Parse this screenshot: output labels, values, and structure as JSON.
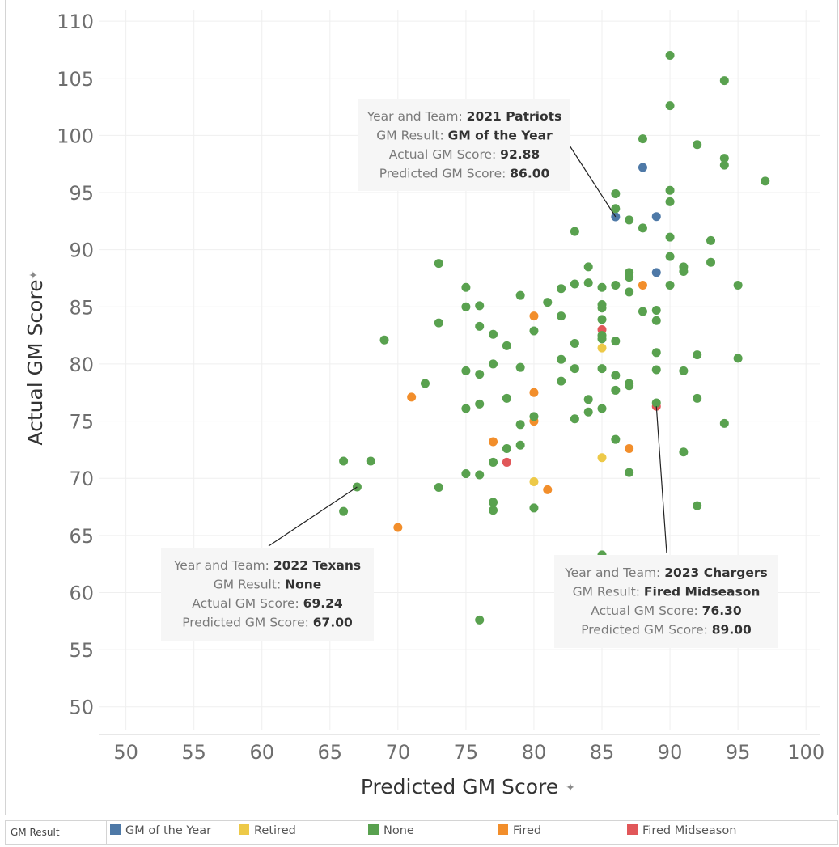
{
  "chart_data": {
    "type": "scatter",
    "xlabel": "Predicted GM Score",
    "ylabel": "Actual GM Score",
    "xlim": [
      48,
      101
    ],
    "ylim": [
      48,
      111
    ],
    "x_ticks": [
      50,
      55,
      60,
      65,
      70,
      75,
      80,
      85,
      90,
      95,
      100
    ],
    "y_ticks": [
      50,
      55,
      60,
      65,
      70,
      75,
      80,
      85,
      90,
      95,
      100,
      105,
      110
    ],
    "grid": true,
    "colors": {
      "GM of the Year": "#4e79a7",
      "Retired": "#edc948",
      "None": "#59a14f",
      "Fired": "#f28e2b",
      "Fired Midseason": "#e15759"
    },
    "points": [
      {
        "x": 86,
        "y": 92.88,
        "result": "GM of the Year"
      },
      {
        "x": 88,
        "y": 97.2,
        "result": "GM of the Year"
      },
      {
        "x": 89,
        "y": 92.9,
        "result": "GM of the Year"
      },
      {
        "x": 89,
        "y": 88.0,
        "result": "GM of the Year"
      },
      {
        "x": 85,
        "y": 81.4,
        "result": "Retired"
      },
      {
        "x": 85,
        "y": 71.8,
        "result": "Retired"
      },
      {
        "x": 80,
        "y": 69.7,
        "result": "Retired"
      },
      {
        "x": 80,
        "y": 84.2,
        "result": "Fired"
      },
      {
        "x": 80,
        "y": 77.5,
        "result": "Fired"
      },
      {
        "x": 80,
        "y": 75.0,
        "result": "Fired"
      },
      {
        "x": 71,
        "y": 77.1,
        "result": "Fired"
      },
      {
        "x": 77,
        "y": 73.2,
        "result": "Fired"
      },
      {
        "x": 81,
        "y": 69.0,
        "result": "Fired"
      },
      {
        "x": 70,
        "y": 65.7,
        "result": "Fired"
      },
      {
        "x": 87,
        "y": 72.6,
        "result": "Fired"
      },
      {
        "x": 88,
        "y": 86.9,
        "result": "Fired"
      },
      {
        "x": 85,
        "y": 83.0,
        "result": "Fired Midseason"
      },
      {
        "x": 78,
        "y": 71.4,
        "result": "Fired Midseason"
      },
      {
        "x": 89,
        "y": 76.3,
        "result": "Fired Midseason"
      },
      {
        "x": 90,
        "y": 107.0,
        "result": "None"
      },
      {
        "x": 94,
        "y": 104.8,
        "result": "None"
      },
      {
        "x": 90,
        "y": 102.6,
        "result": "None"
      },
      {
        "x": 88,
        "y": 99.7,
        "result": "None"
      },
      {
        "x": 92,
        "y": 99.2,
        "result": "None"
      },
      {
        "x": 94,
        "y": 98.0,
        "result": "None"
      },
      {
        "x": 94,
        "y": 97.4,
        "result": "None"
      },
      {
        "x": 97,
        "y": 96.0,
        "result": "None"
      },
      {
        "x": 90,
        "y": 95.2,
        "result": "None"
      },
      {
        "x": 86,
        "y": 94.9,
        "result": "None"
      },
      {
        "x": 90,
        "y": 94.2,
        "result": "None"
      },
      {
        "x": 86,
        "y": 93.6,
        "result": "None"
      },
      {
        "x": 87,
        "y": 92.6,
        "result": "None"
      },
      {
        "x": 88,
        "y": 91.9,
        "result": "None"
      },
      {
        "x": 83,
        "y": 91.6,
        "result": "None"
      },
      {
        "x": 90,
        "y": 91.1,
        "result": "None"
      },
      {
        "x": 93,
        "y": 90.8,
        "result": "None"
      },
      {
        "x": 90,
        "y": 89.4,
        "result": "None"
      },
      {
        "x": 73,
        "y": 88.8,
        "result": "None"
      },
      {
        "x": 93,
        "y": 88.9,
        "result": "None"
      },
      {
        "x": 91,
        "y": 88.5,
        "result": "None"
      },
      {
        "x": 84,
        "y": 88.5,
        "result": "None"
      },
      {
        "x": 91,
        "y": 88.1,
        "result": "None"
      },
      {
        "x": 87,
        "y": 88.0,
        "result": "None"
      },
      {
        "x": 87,
        "y": 87.6,
        "result": "None"
      },
      {
        "x": 83,
        "y": 87.0,
        "result": "None"
      },
      {
        "x": 84,
        "y": 87.1,
        "result": "None"
      },
      {
        "x": 86,
        "y": 86.9,
        "result": "None"
      },
      {
        "x": 90,
        "y": 86.9,
        "result": "None"
      },
      {
        "x": 95,
        "y": 86.9,
        "result": "None"
      },
      {
        "x": 75,
        "y": 86.7,
        "result": "None"
      },
      {
        "x": 82,
        "y": 86.6,
        "result": "None"
      },
      {
        "x": 85,
        "y": 86.7,
        "result": "None"
      },
      {
        "x": 87,
        "y": 86.3,
        "result": "None"
      },
      {
        "x": 79,
        "y": 86.0,
        "result": "None"
      },
      {
        "x": 81,
        "y": 85.4,
        "result": "None"
      },
      {
        "x": 85,
        "y": 85.2,
        "result": "None"
      },
      {
        "x": 75,
        "y": 85.0,
        "result": "None"
      },
      {
        "x": 76,
        "y": 85.1,
        "result": "None"
      },
      {
        "x": 85,
        "y": 84.9,
        "result": "None"
      },
      {
        "x": 88,
        "y": 84.6,
        "result": "None"
      },
      {
        "x": 89,
        "y": 84.7,
        "result": "None"
      },
      {
        "x": 82,
        "y": 84.2,
        "result": "None"
      },
      {
        "x": 85,
        "y": 83.9,
        "result": "None"
      },
      {
        "x": 89,
        "y": 83.8,
        "result": "None"
      },
      {
        "x": 73,
        "y": 83.6,
        "result": "None"
      },
      {
        "x": 76,
        "y": 83.3,
        "result": "None"
      },
      {
        "x": 80,
        "y": 82.9,
        "result": "None"
      },
      {
        "x": 77,
        "y": 82.6,
        "result": "None"
      },
      {
        "x": 85,
        "y": 82.5,
        "result": "None"
      },
      {
        "x": 69,
        "y": 82.1,
        "result": "None"
      },
      {
        "x": 85,
        "y": 82.2,
        "result": "None"
      },
      {
        "x": 86,
        "y": 82.0,
        "result": "None"
      },
      {
        "x": 83,
        "y": 81.8,
        "result": "None"
      },
      {
        "x": 78,
        "y": 81.6,
        "result": "None"
      },
      {
        "x": 89,
        "y": 81.0,
        "result": "None"
      },
      {
        "x": 92,
        "y": 80.8,
        "result": "None"
      },
      {
        "x": 95,
        "y": 80.5,
        "result": "None"
      },
      {
        "x": 82,
        "y": 80.4,
        "result": "None"
      },
      {
        "x": 77,
        "y": 80.0,
        "result": "None"
      },
      {
        "x": 79,
        "y": 79.7,
        "result": "None"
      },
      {
        "x": 83,
        "y": 79.6,
        "result": "None"
      },
      {
        "x": 85,
        "y": 79.6,
        "result": "None"
      },
      {
        "x": 89,
        "y": 79.5,
        "result": "None"
      },
      {
        "x": 91,
        "y": 79.4,
        "result": "None"
      },
      {
        "x": 75,
        "y": 79.4,
        "result": "None"
      },
      {
        "x": 76,
        "y": 79.1,
        "result": "None"
      },
      {
        "x": 86,
        "y": 79.0,
        "result": "None"
      },
      {
        "x": 82,
        "y": 78.5,
        "result": "None"
      },
      {
        "x": 72,
        "y": 78.3,
        "result": "None"
      },
      {
        "x": 87,
        "y": 78.3,
        "result": "None"
      },
      {
        "x": 87,
        "y": 78.1,
        "result": "None"
      },
      {
        "x": 86,
        "y": 77.7,
        "result": "None"
      },
      {
        "x": 78,
        "y": 77.0,
        "result": "None"
      },
      {
        "x": 92,
        "y": 77.0,
        "result": "None"
      },
      {
        "x": 84,
        "y": 76.9,
        "result": "None"
      },
      {
        "x": 89,
        "y": 76.6,
        "result": "None"
      },
      {
        "x": 76,
        "y": 76.5,
        "result": "None"
      },
      {
        "x": 75,
        "y": 76.1,
        "result": "None"
      },
      {
        "x": 85,
        "y": 76.1,
        "result": "None"
      },
      {
        "x": 84,
        "y": 75.8,
        "result": "None"
      },
      {
        "x": 80,
        "y": 75.4,
        "result": "None"
      },
      {
        "x": 83,
        "y": 75.2,
        "result": "None"
      },
      {
        "x": 94,
        "y": 74.8,
        "result": "None"
      },
      {
        "x": 79,
        "y": 74.7,
        "result": "None"
      },
      {
        "x": 86,
        "y": 73.4,
        "result": "None"
      },
      {
        "x": 79,
        "y": 72.9,
        "result": "None"
      },
      {
        "x": 78,
        "y": 72.6,
        "result": "None"
      },
      {
        "x": 91,
        "y": 72.3,
        "result": "None"
      },
      {
        "x": 66,
        "y": 71.5,
        "result": "None"
      },
      {
        "x": 68,
        "y": 71.5,
        "result": "None"
      },
      {
        "x": 77,
        "y": 71.4,
        "result": "None"
      },
      {
        "x": 75,
        "y": 70.4,
        "result": "None"
      },
      {
        "x": 76,
        "y": 70.3,
        "result": "None"
      },
      {
        "x": 87,
        "y": 70.5,
        "result": "None"
      },
      {
        "x": 67,
        "y": 69.24,
        "result": "None"
      },
      {
        "x": 73,
        "y": 69.2,
        "result": "None"
      },
      {
        "x": 77,
        "y": 67.9,
        "result": "None"
      },
      {
        "x": 80,
        "y": 67.4,
        "result": "None"
      },
      {
        "x": 92,
        "y": 67.6,
        "result": "None"
      },
      {
        "x": 66,
        "y": 67.1,
        "result": "None"
      },
      {
        "x": 77,
        "y": 67.2,
        "result": "None"
      },
      {
        "x": 82,
        "y": 62.7,
        "result": "None"
      },
      {
        "x": 85,
        "y": 63.3,
        "result": "None"
      },
      {
        "x": 76,
        "y": 57.6,
        "result": "None"
      }
    ],
    "tooltips": [
      {
        "name": "tooltip-2021-patriots",
        "target_x": 86,
        "target_y": 92.88,
        "rows": [
          {
            "label": "Year and Team: ",
            "value": "2021 Patriots"
          },
          {
            "label": "GM Result: ",
            "value": "GM of the Year"
          },
          {
            "label": "Actual GM Score: ",
            "value": "92.88"
          },
          {
            "label": "Predicted GM Score: ",
            "value": "86.00"
          }
        ]
      },
      {
        "name": "tooltip-2022-texans",
        "target_x": 67,
        "target_y": 69.24,
        "rows": [
          {
            "label": "Year and Team: ",
            "value": "2022 Texans"
          },
          {
            "label": "GM Result: ",
            "value": "None"
          },
          {
            "label": "Actual GM Score: ",
            "value": "69.24"
          },
          {
            "label": "Predicted GM Score: ",
            "value": "67.00"
          }
        ]
      },
      {
        "name": "tooltip-2023-chargers",
        "target_x": 89,
        "target_y": 76.3,
        "rows": [
          {
            "label": "Year and Team: ",
            "value": "2023 Chargers"
          },
          {
            "label": "GM Result: ",
            "value": "Fired Midseason"
          },
          {
            "label": "Actual GM Score: ",
            "value": "76.30"
          },
          {
            "label": "Predicted GM Score: ",
            "value": "89.00"
          }
        ]
      }
    ]
  },
  "legend": {
    "title": "GM Result",
    "items": [
      {
        "label": "GM of the Year",
        "color": "#4e79a7"
      },
      {
        "label": "Retired",
        "color": "#edc948"
      },
      {
        "label": "None",
        "color": "#59a14f"
      },
      {
        "label": "Fired",
        "color": "#f28e2b"
      },
      {
        "label": "Fired Midseason",
        "color": "#e15759"
      }
    ]
  }
}
